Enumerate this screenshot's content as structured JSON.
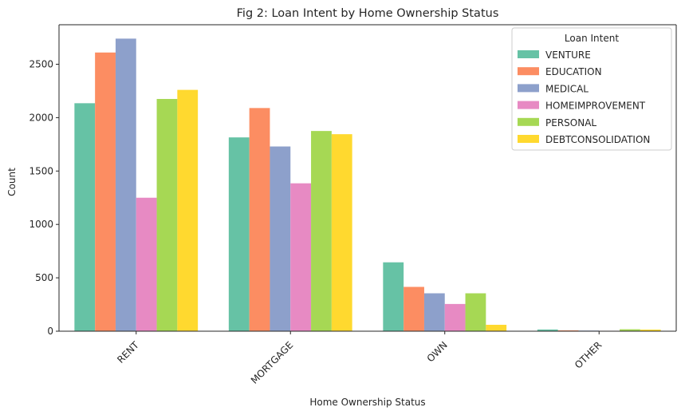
{
  "chart_data": {
    "type": "bar",
    "title": "Fig 2: Loan Intent by Home Ownership Status",
    "xlabel": "Home Ownership Status",
    "ylabel": "Count",
    "categories": [
      "RENT",
      "MORTGAGE",
      "OWN",
      "OTHER"
    ],
    "ylim": [
      0,
      2870
    ],
    "yticks": [
      0,
      500,
      1000,
      1500,
      2000,
      2500
    ],
    "grid": false,
    "legend": {
      "title": "Loan Intent",
      "position": "top-right"
    },
    "series": [
      {
        "name": "VENTURE",
        "color": "#66c2a5",
        "values": [
          2135,
          1815,
          645,
          16
        ]
      },
      {
        "name": "EDUCATION",
        "color": "#fc8d62",
        "values": [
          2610,
          2090,
          415,
          8
        ]
      },
      {
        "name": "MEDICAL",
        "color": "#8da0cb",
        "values": [
          2740,
          1730,
          355,
          6
        ]
      },
      {
        "name": "HOMEIMPROVEMENT",
        "color": "#e78ac3",
        "values": [
          1250,
          1385,
          255,
          4
        ]
      },
      {
        "name": "PERSONAL",
        "color": "#a6d854",
        "values": [
          2175,
          1875,
          355,
          18
        ]
      },
      {
        "name": "DEBTCONSOLIDATION",
        "color": "#ffd92f",
        "values": [
          2260,
          1845,
          60,
          15
        ]
      }
    ]
  }
}
